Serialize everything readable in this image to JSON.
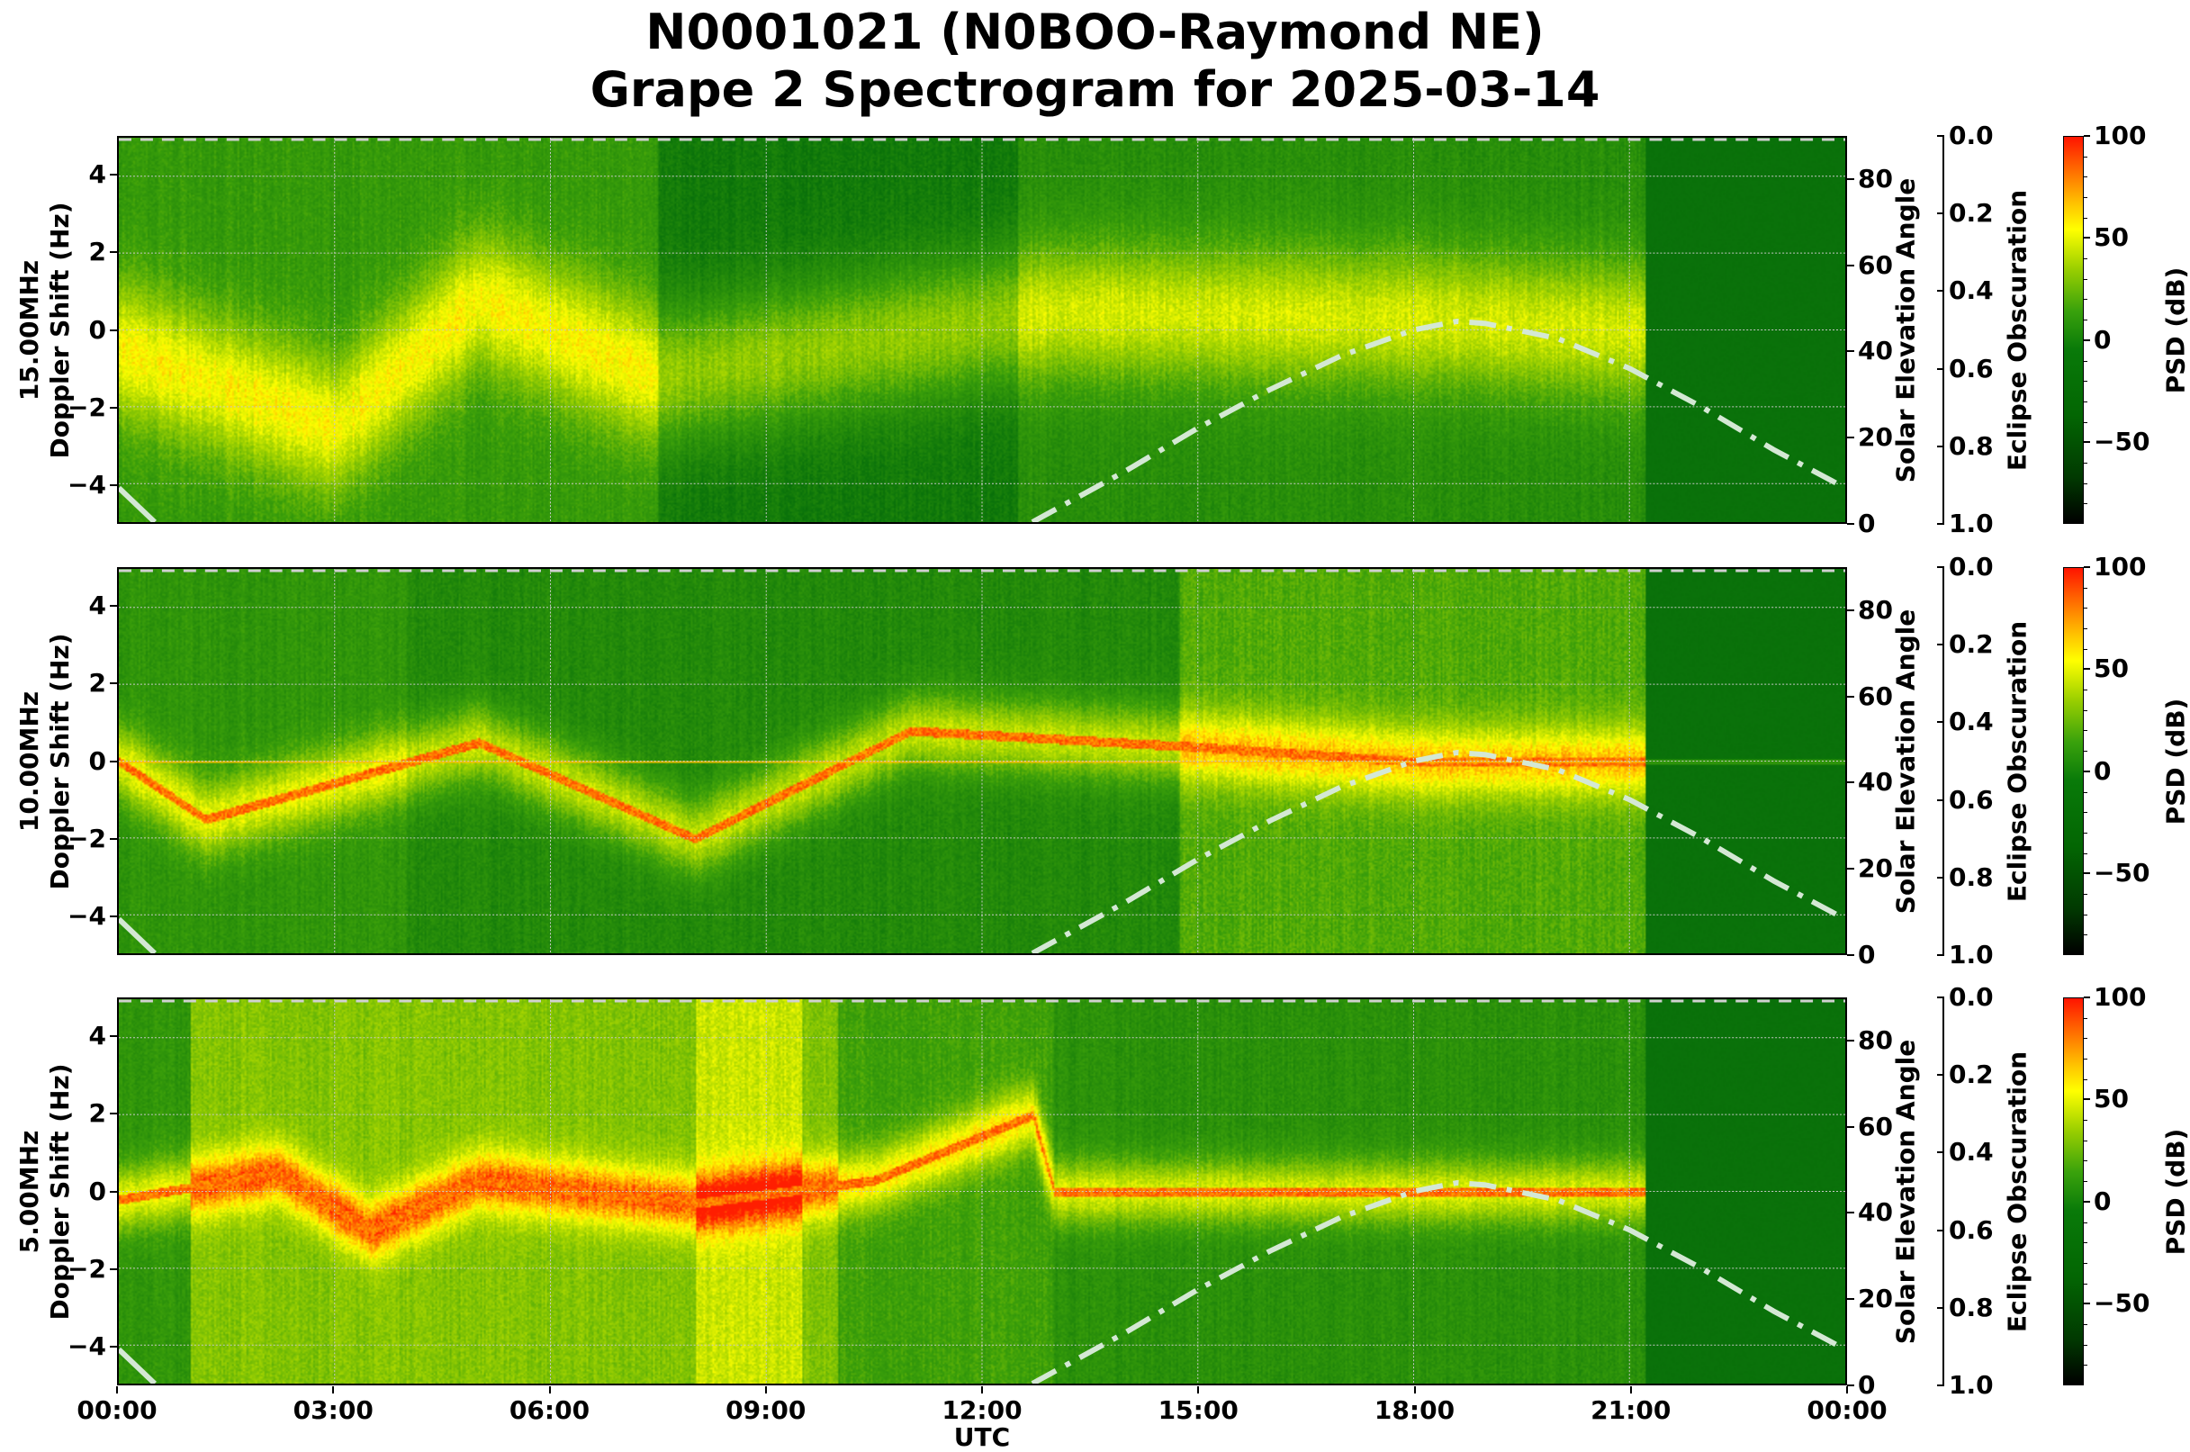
{
  "title": {
    "line1": "N0001021 (N0BOO-Raymond NE)",
    "line2": "Grape 2 Spectrogram for 2025-03-14"
  },
  "x_axis": {
    "label": "UTC",
    "ticks": [
      "00:00",
      "03:00",
      "06:00",
      "09:00",
      "12:00",
      "15:00",
      "18:00",
      "21:00",
      "00:00"
    ]
  },
  "panels": [
    {
      "frequency": "15.00MHz",
      "ylabel": "Doppler Shift (Hz)",
      "yticks": [
        "4",
        "2",
        "0",
        "−2",
        "−4"
      ],
      "right_label": "Solar Elevation Angle",
      "right_ticks": [
        "80",
        "60",
        "40",
        "20",
        "0"
      ],
      "eclipse_label": "Eclipse Obscuration",
      "eclipse_ticks": [
        "0.0",
        "0.2",
        "0.4",
        "0.6",
        "0.8",
        "1.0"
      ],
      "cbar_label": "PSD (dB)",
      "cbar_ticks": [
        "100",
        "50",
        "0",
        "−50"
      ]
    },
    {
      "frequency": "10.00MHz",
      "ylabel": "Doppler Shift (Hz)",
      "yticks": [
        "4",
        "2",
        "0",
        "−2",
        "−4"
      ],
      "right_label": "Solar Elevation Angle",
      "right_ticks": [
        "80",
        "60",
        "40",
        "20",
        "0"
      ],
      "eclipse_label": "Eclipse Obscuration",
      "eclipse_ticks": [
        "0.0",
        "0.2",
        "0.4",
        "0.6",
        "0.8",
        "1.0"
      ],
      "cbar_label": "PSD (dB)",
      "cbar_ticks": [
        "100",
        "50",
        "0",
        "−50"
      ]
    },
    {
      "frequency": "5.00MHz",
      "ylabel": "Doppler Shift (Hz)",
      "yticks": [
        "4",
        "2",
        "0",
        "−2",
        "−4"
      ],
      "right_label": "Solar Elevation Angle",
      "right_ticks": [
        "80",
        "60",
        "40",
        "20",
        "0"
      ],
      "eclipse_label": "Eclipse Obscuration",
      "eclipse_ticks": [
        "0.0",
        "0.2",
        "0.4",
        "0.6",
        "0.8",
        "1.0"
      ],
      "cbar_label": "PSD (dB)",
      "cbar_ticks": [
        "100",
        "50",
        "0",
        "−50"
      ]
    }
  ],
  "chart_data": {
    "type": "heatmap",
    "title": "N0001021 (N0BOO-Raymond NE) Grape 2 Spectrogram for 2025-03-14",
    "xlabel": "UTC",
    "x_ticks": [
      "00:00",
      "03:00",
      "06:00",
      "09:00",
      "12:00",
      "15:00",
      "18:00",
      "21:00",
      "00:00"
    ],
    "xlim_hours": [
      0,
      24
    ],
    "ylabel": "Doppler Shift (Hz)",
    "ylim": [
      -5,
      5
    ],
    "y_ticks": [
      -4,
      -2,
      0,
      2,
      4
    ],
    "secondary_y": {
      "label": "Solar Elevation Angle",
      "ylim": [
        0,
        90
      ],
      "ticks": [
        0,
        20,
        40,
        60,
        80
      ]
    },
    "tertiary_y": {
      "label": "Eclipse Obscuration",
      "ylim": [
        1.0,
        0.0
      ],
      "ticks": [
        0.0,
        0.2,
        0.4,
        0.6,
        0.8,
        1.0
      ]
    },
    "colorbar": {
      "label": "PSD (dB)",
      "range": [
        -90,
        100
      ],
      "ticks": [
        -50,
        0,
        50,
        100
      ],
      "colormap": "black-green-yellow-orange-red"
    },
    "grid": true,
    "data_end_hour": 21.2,
    "solar_elevation_curve": {
      "style": "dash-dot, light gray",
      "x_hours": [
        0,
        0.5,
        12.7,
        14,
        15,
        16,
        17,
        18,
        18.6,
        19,
        20,
        21,
        22,
        23,
        24
      ],
      "values": [
        8,
        0,
        0,
        12,
        22,
        31,
        39,
        45,
        47,
        46.5,
        43,
        36,
        27,
        17,
        8
      ]
    },
    "series": [
      {
        "name": "15.00MHz",
        "peak_trace_hz": [
          {
            "hour": 0,
            "doppler": -0.5
          },
          {
            "hour": 3,
            "doppler": -2.5
          },
          {
            "hour": 5,
            "doppler": 0.8
          },
          {
            "hour": 7.5,
            "doppler": -1.2
          },
          {
            "hour": 13,
            "doppler": 0.5
          },
          {
            "hour": 18.5,
            "doppler": 0.3
          },
          {
            "hour": 21,
            "doppler": 0
          }
        ],
        "notes": "diffuse yellow Doppler spread 00:00-07:30 and 12:30-21:15; dark green after 21:15"
      },
      {
        "name": "10.00MHz",
        "peak_trace_hz": [
          {
            "hour": 0,
            "doppler": 0
          },
          {
            "hour": 1.2,
            "doppler": -1.5
          },
          {
            "hour": 5,
            "doppler": 0.5
          },
          {
            "hour": 8,
            "doppler": -2
          },
          {
            "hour": 11,
            "doppler": 0.8
          },
          {
            "hour": 14.8,
            "doppler": 0.4
          },
          {
            "hour": 18,
            "doppler": 0
          },
          {
            "hour": 21.2,
            "doppler": 0
          }
        ],
        "notes": "strong carrier line at 0 Hz; broadband noise block 14:45-21:15"
      },
      {
        "name": "5.00MHz",
        "peak_trace_hz": [
          {
            "hour": 0,
            "doppler": -0.2
          },
          {
            "hour": 2.2,
            "doppler": 0.5
          },
          {
            "hour": 3.5,
            "doppler": -1
          },
          {
            "hour": 5,
            "doppler": 0.3
          },
          {
            "hour": 8,
            "doppler": -0.3
          },
          {
            "hour": 10.5,
            "doppler": 0.3
          },
          {
            "hour": 12.7,
            "doppler": 2
          },
          {
            "hour": 13,
            "doppler": 0
          },
          {
            "hour": 21.2,
            "doppler": 0
          }
        ],
        "notes": "high-power yellow background 00:00-13:00 with red trace near 0 Hz"
      }
    ]
  }
}
